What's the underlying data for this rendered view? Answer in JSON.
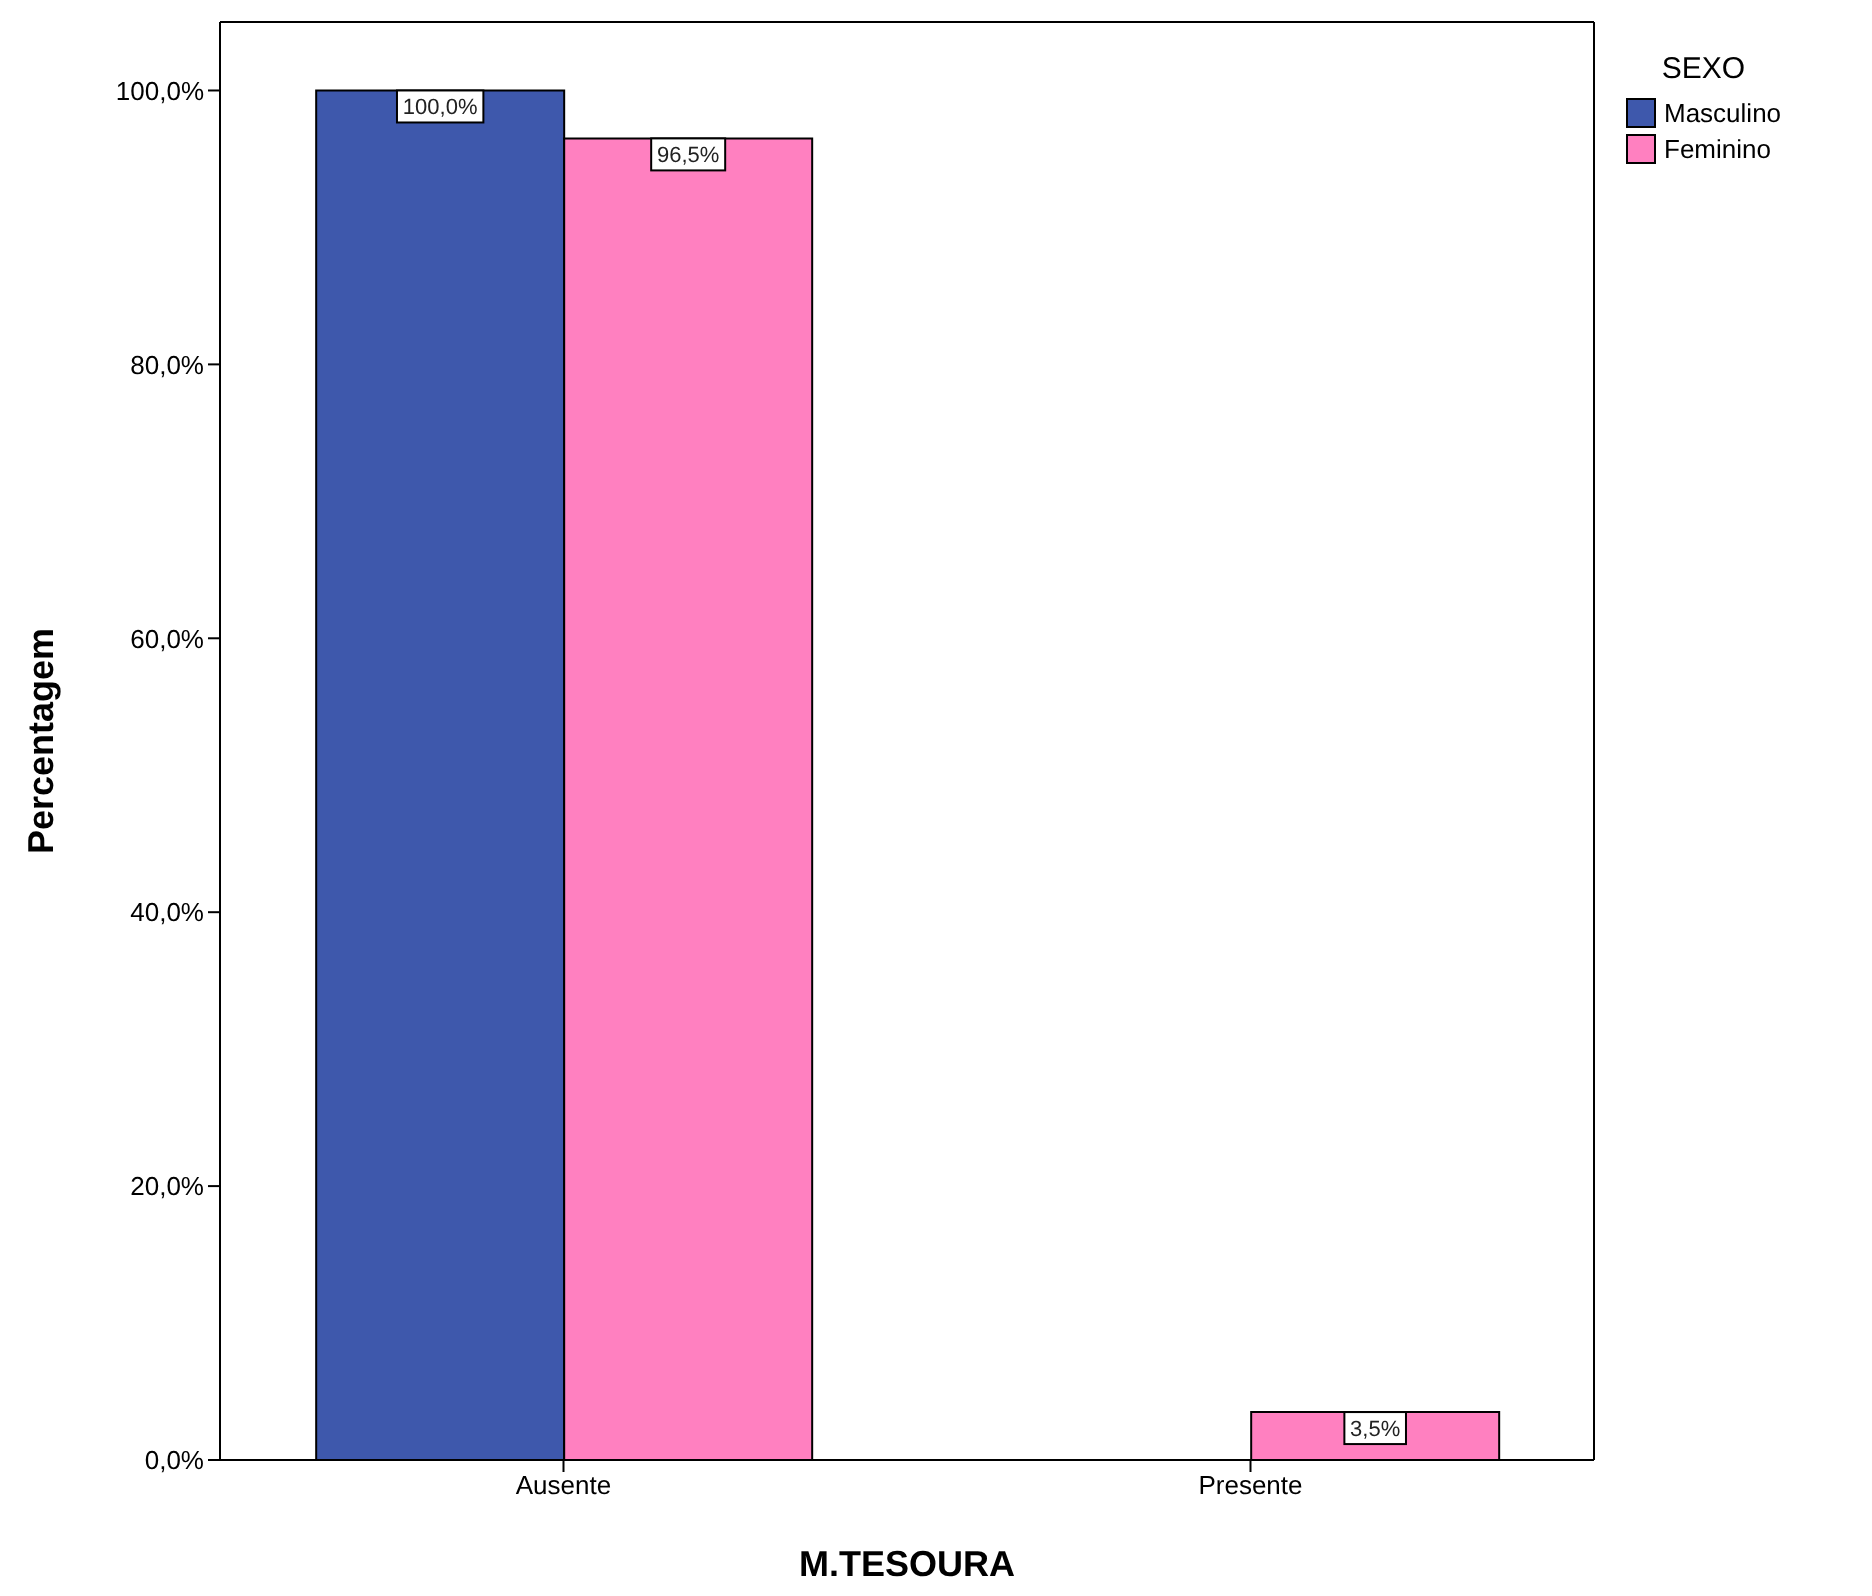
{
  "chart_data": {
    "type": "bar",
    "xlabel": "M.TESOURA",
    "ylabel": "Percentagem",
    "legend_title": "SEXO",
    "categories": [
      "Ausente",
      "Presente"
    ],
    "series": [
      {
        "name": "Masculino",
        "color": "#3e58ac",
        "values": [
          100,
          0
        ],
        "value_labels": [
          "100,0%",
          null
        ]
      },
      {
        "name": "Feminino",
        "color": "#ff80c0",
        "values": [
          96.5,
          3.5
        ],
        "value_labels": [
          "96,5%",
          "3,5%"
        ]
      }
    ],
    "ylim": [
      0,
      105
    ],
    "yticks": [
      {
        "value": 0,
        "label": "0,0%"
      },
      {
        "value": 20,
        "label": "20,0%"
      },
      {
        "value": 40,
        "label": "40,0%"
      },
      {
        "value": 60,
        "label": "60,0%"
      },
      {
        "value": 80,
        "label": "80,0%"
      },
      {
        "value": 100,
        "label": "100,0%"
      }
    ],
    "grid": false,
    "legend": "top right"
  }
}
